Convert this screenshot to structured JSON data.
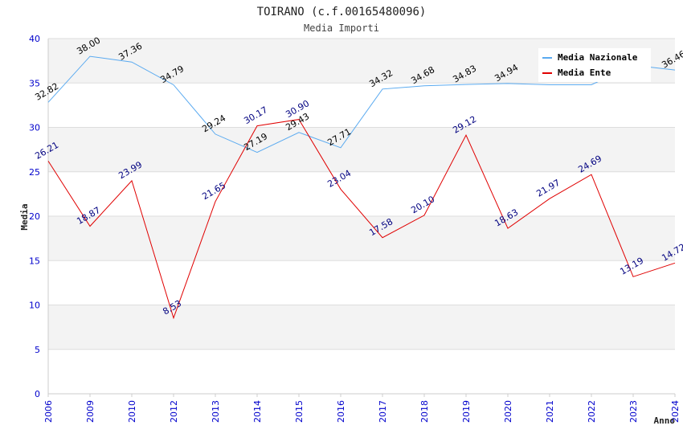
{
  "chart_data": {
    "type": "line",
    "title": "TOIRANO (c.f.00165480096)",
    "subtitle": "Media Importi",
    "xlabel": "Anno",
    "ylabel": "Media",
    "ylim": [
      0,
      40
    ],
    "yticks": [
      "0",
      "5",
      "10",
      "15",
      "20",
      "25",
      "30",
      "35",
      "40"
    ],
    "categories": [
      "2006",
      "2009",
      "2010",
      "2012",
      "2013",
      "2014",
      "2015",
      "2016",
      "2017",
      "2018",
      "2019",
      "2020",
      "2021",
      "2022",
      "2023",
      "2024"
    ],
    "legend_position": "top-right",
    "grid": true,
    "series": [
      {
        "name": "Media Nazionale",
        "color": "#5aaaf0",
        "values": [
          32.82,
          38.0,
          37.36,
          34.79,
          29.24,
          27.19,
          29.43,
          27.71,
          34.32,
          34.68,
          34.83,
          34.94,
          34.8,
          34.8,
          37.0,
          36.46
        ],
        "labels": [
          "32.82",
          "38.00",
          "37.36",
          "34.79",
          "29.24",
          "27.19",
          "29.43",
          "27.71",
          "34.32",
          "34.68",
          "34.83",
          "34.94",
          "",
          "",
          "",
          "36.46"
        ]
      },
      {
        "name": "Media Ente",
        "color": "#e00000",
        "values": [
          26.21,
          18.87,
          23.99,
          8.53,
          21.65,
          30.17,
          30.9,
          23.04,
          17.58,
          20.1,
          29.12,
          18.63,
          21.97,
          24.69,
          13.19,
          14.72
        ],
        "labels": [
          "26.21",
          "18.87",
          "23.99",
          "8.53",
          "21.65",
          "30.17",
          "30.90",
          "23.04",
          "17.58",
          "20.10",
          "29.12",
          "18.63",
          "21.97",
          "24.69",
          "13.19",
          "14.72"
        ]
      }
    ]
  }
}
